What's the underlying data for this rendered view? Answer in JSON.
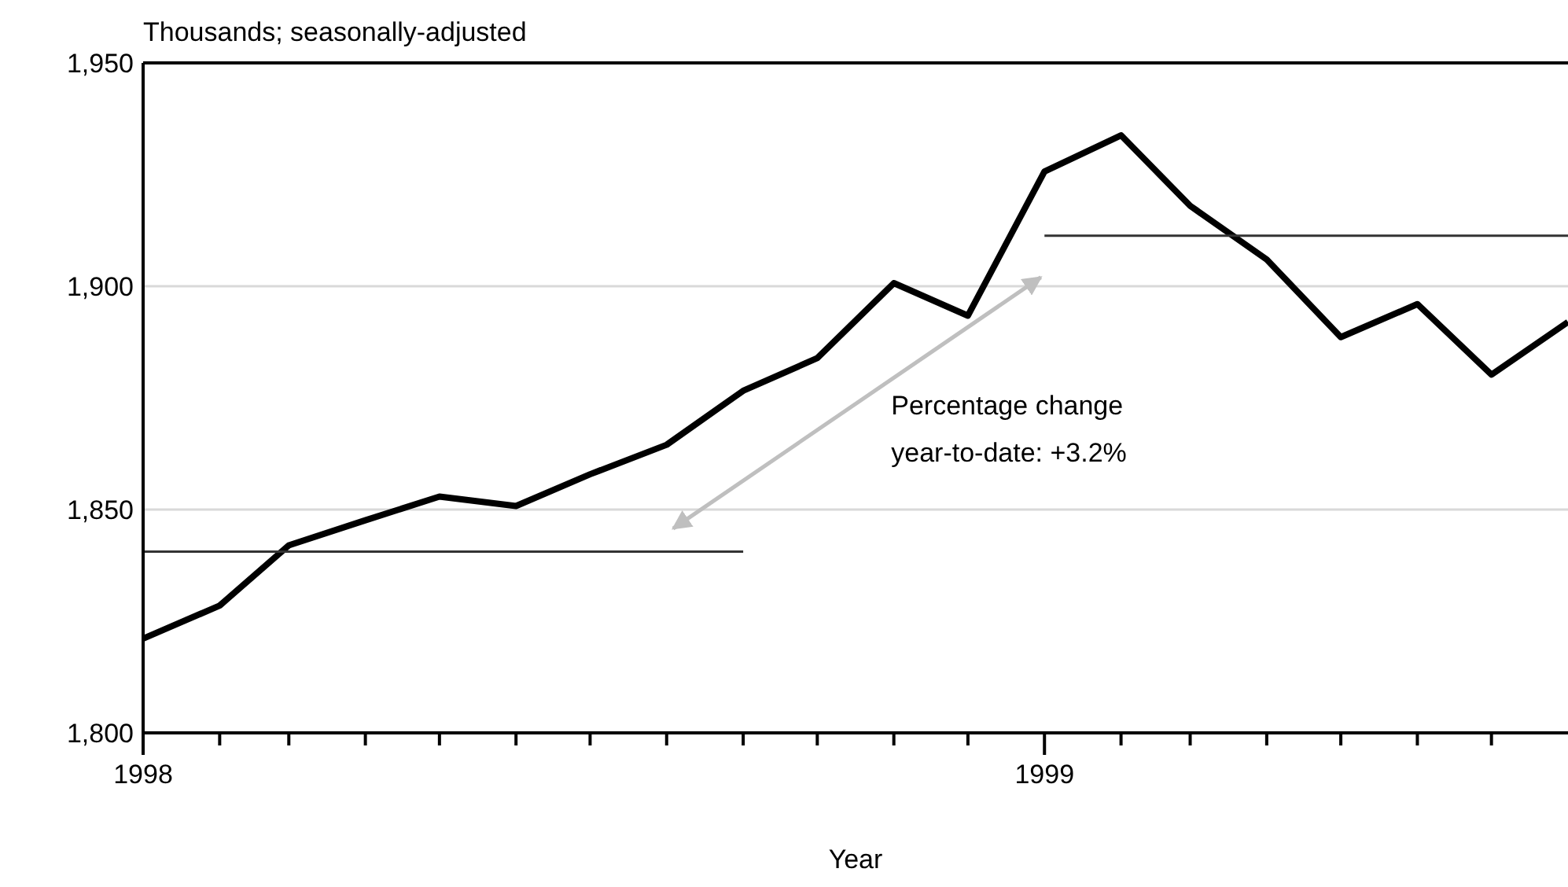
{
  "chart_data": {
    "type": "line",
    "ylabel": "Thousands; seasonally-adjusted",
    "xlabel": "Year",
    "x": [
      "1998-01",
      "1998-02",
      "1998-03",
      "1998-04",
      "1998-05",
      "1998-06",
      "1998-07",
      "1998-08",
      "1998-09",
      "1998-10",
      "1998-11",
      "1998-12",
      "1999-01",
      "1999-02",
      "1999-03",
      "1999-04",
      "1999-05",
      "1999-06",
      "1999-07",
      "1999-08"
    ],
    "series": [
      {
        "color": "#000000",
        "values": [
          1821.1,
          1828.5,
          1842,
          1847.6,
          1852.9,
          1850.8,
          1857.9,
          1864.5,
          1876.6,
          1883.9,
          1900.7,
          1893.4,
          1925.7,
          1933.8,
          1918,
          1906,
          1888.6,
          1896,
          1880.2,
          1892
        ]
      },
      {
        "color": "#333333",
        "x": [
          "1998-01",
          "1998-09"
        ],
        "values": [
          1840.6,
          1840.6
        ]
      },
      {
        "color": "#333333",
        "x": [
          "1999-01",
          "1999-08"
        ],
        "values": [
          1911.3,
          1911.3
        ]
      }
    ],
    "xlim": [
      "1998-01",
      "1999-08"
    ],
    "xticks": [
      {
        "value": "1998-01",
        "label": "1998"
      },
      {
        "value": "1998-02",
        "label": null
      },
      {
        "value": "1998-03",
        "label": null
      },
      {
        "value": "1998-04",
        "label": null
      },
      {
        "value": "1998-05",
        "label": null
      },
      {
        "value": "1998-06",
        "label": null
      },
      {
        "value": "1998-07",
        "label": null
      },
      {
        "value": "1998-08",
        "label": null
      },
      {
        "value": "1998-09",
        "label": null
      },
      {
        "value": "1998-10",
        "label": null
      },
      {
        "value": "1998-11",
        "label": null
      },
      {
        "value": "1998-12",
        "label": null
      },
      {
        "value": "1999-01",
        "label": "1999"
      },
      {
        "value": "1999-02",
        "label": null
      },
      {
        "value": "1999-03",
        "label": null
      },
      {
        "value": "1999-04",
        "label": null
      },
      {
        "value": "1999-05",
        "label": null
      },
      {
        "value": "1999-06",
        "label": null
      },
      {
        "value": "1999-07",
        "label": null
      }
    ],
    "ylim": [
      1800,
      1950
    ],
    "yticks": [
      {
        "value": 1800,
        "label": "1,800"
      },
      {
        "value": 1850,
        "label": "1,850"
      },
      {
        "value": 1900,
        "label": "1,900"
      },
      {
        "value": 1950,
        "label": "1,950"
      }
    ],
    "grid": "y",
    "annotations": [
      "Percentage change\nyear-to-date: +3.2%"
    ]
  }
}
